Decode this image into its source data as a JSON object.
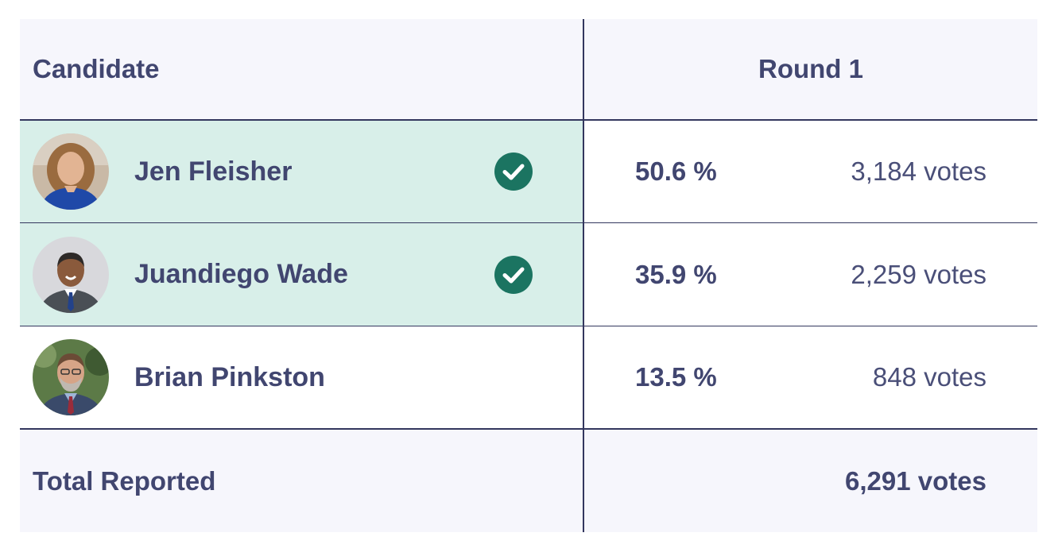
{
  "header": {
    "candidate_label": "Candidate",
    "round_label": "Round 1"
  },
  "candidates": [
    {
      "name": "Jen Fleisher",
      "percent": "50.6 %",
      "votes": "3,184 votes",
      "winner": true,
      "avatar_icon": "candidate-photo-jen-fleisher"
    },
    {
      "name": "Juandiego Wade",
      "percent": "35.9 %",
      "votes": "2,259 votes",
      "winner": true,
      "avatar_icon": "candidate-photo-juandiego-wade"
    },
    {
      "name": "Brian Pinkston",
      "percent": "13.5 %",
      "votes": "848 votes",
      "winner": false,
      "avatar_icon": "candidate-photo-brian-pinkston"
    }
  ],
  "total": {
    "label": "Total Reported",
    "votes": "6,291 votes"
  },
  "colors": {
    "text": "#414670",
    "winner_row": "#d8efe9",
    "header_bg": "#f6f6fc",
    "check": "#1b7461",
    "divider": "#33375e"
  },
  "icons": {
    "winner": "check-circle-icon"
  }
}
